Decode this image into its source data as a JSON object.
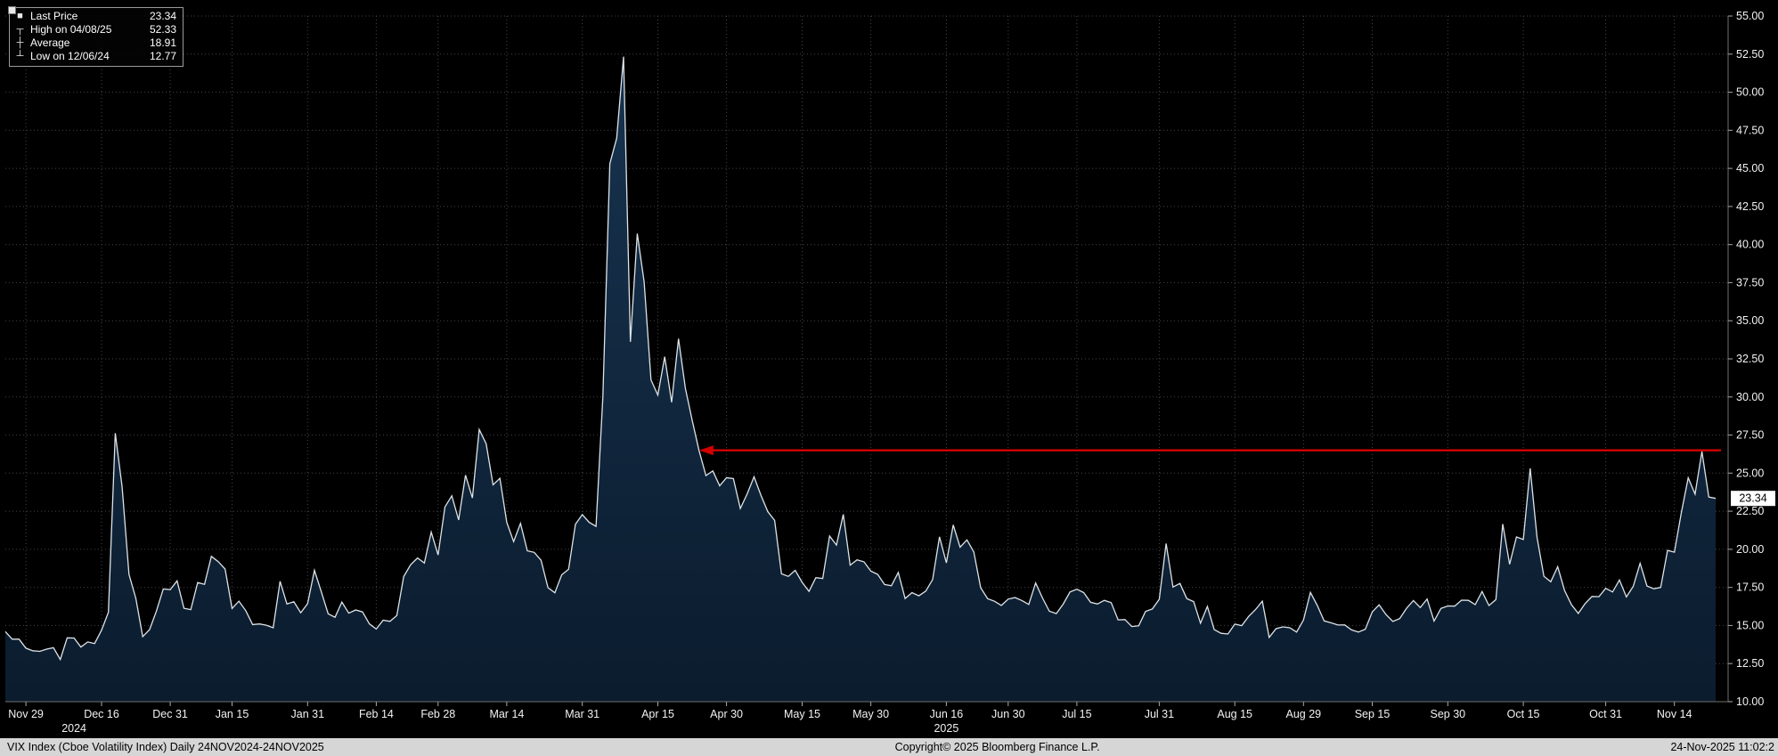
{
  "legend": {
    "items": [
      {
        "glyph": "■",
        "label": "Last Price",
        "value": "23.34"
      },
      {
        "glyph": "┬",
        "label": "High on 04/08/25",
        "value": "52.33"
      },
      {
        "glyph": "┼",
        "label": "Average",
        "value": "18.91"
      },
      {
        "glyph": "┴",
        "label": "Low on 12/06/24",
        "value": "12.77"
      }
    ]
  },
  "footer": {
    "left": "VIX Index (Cboe Volatility Index) Daily 24NOV2024-24NOV2025",
    "center": "Copyright© 2025 Bloomberg Finance L.P.",
    "right": "24-Nov-2025 11:02:2"
  },
  "chart_data": {
    "type": "area",
    "title": "VIX Index (Cboe Volatility Index) Daily 24NOV2024-24NOV2025",
    "x_range": [
      "2024-11-24",
      "2025-11-24"
    ],
    "ylim": [
      10,
      55
    ],
    "y_tick_step": 2.5,
    "y_ticks": [
      "55.00",
      "52.50",
      "50.00",
      "47.50",
      "45.00",
      "42.50",
      "40.00",
      "37.50",
      "35.00",
      "32.50",
      "30.00",
      "27.50",
      "25.00",
      "22.50",
      "20.00",
      "17.50",
      "15.00",
      "12.50",
      "10.00"
    ],
    "x_ticks": [
      {
        "date": "2024-11-29",
        "label": "Nov 29"
      },
      {
        "date": "2024-12-16",
        "label": "Dec 16"
      },
      {
        "date": "2024-12-31",
        "label": "Dec 31"
      },
      {
        "date": "2025-01-15",
        "label": "Jan 15"
      },
      {
        "date": "2025-01-31",
        "label": "Jan 31"
      },
      {
        "date": "2025-02-14",
        "label": "Feb 14"
      },
      {
        "date": "2025-02-28",
        "label": "Feb 28"
      },
      {
        "date": "2025-03-14",
        "label": "Mar 14"
      },
      {
        "date": "2025-03-31",
        "label": "Mar 31"
      },
      {
        "date": "2025-04-15",
        "label": "Apr 15"
      },
      {
        "date": "2025-04-30",
        "label": "Apr 30"
      },
      {
        "date": "2025-05-15",
        "label": "May 15"
      },
      {
        "date": "2025-05-30",
        "label": "May 30"
      },
      {
        "date": "2025-06-16",
        "label": "Jun 16"
      },
      {
        "date": "2025-06-30",
        "label": "Jun 30"
      },
      {
        "date": "2025-07-15",
        "label": "Jul 15"
      },
      {
        "date": "2025-07-31",
        "label": "Jul 31"
      },
      {
        "date": "2025-08-15",
        "label": "Aug 15"
      },
      {
        "date": "2025-08-29",
        "label": "Aug 29"
      },
      {
        "date": "2025-09-15",
        "label": "Sep 15"
      },
      {
        "date": "2025-09-30",
        "label": "Sep 30"
      },
      {
        "date": "2025-10-15",
        "label": "Oct 15"
      },
      {
        "date": "2025-10-31",
        "label": "Oct 31"
      },
      {
        "date": "2025-11-14",
        "label": "Nov 14"
      }
    ],
    "year_labels": [
      {
        "label": "2024",
        "date": "2024-12-10"
      },
      {
        "label": "2025",
        "date": "2025-06-16"
      }
    ],
    "grid": "dotted",
    "legend_position": "top-left",
    "stats": {
      "last": 23.34,
      "high_date": "04/08/25",
      "high": 52.33,
      "average": 18.91,
      "low_date": "12/06/24",
      "low": 12.77
    },
    "annotations": {
      "arrow": {
        "type": "horizontal-arrow",
        "y": 26.5,
        "from_date": "2025-04-24",
        "to": "right-edge",
        "color": "#d40000"
      },
      "last_price_marker": {
        "value": "23.34",
        "y": 23.34,
        "box_color": "#ffffff",
        "text_color": "#000000"
      }
    },
    "series": [
      {
        "name": "VIX Index Last Price",
        "line_color": "#dde3e8",
        "fill_top": "#17334f",
        "fill_bottom": "#0b1c2e",
        "dates": [
          "2024-11-25",
          "2024-11-26",
          "2024-11-27",
          "2024-11-29",
          "2024-12-02",
          "2024-12-03",
          "2024-12-04",
          "2024-12-05",
          "2024-12-06",
          "2024-12-09",
          "2024-12-10",
          "2024-12-11",
          "2024-12-12",
          "2024-12-13",
          "2024-12-16",
          "2024-12-17",
          "2024-12-18",
          "2024-12-19",
          "2024-12-20",
          "2024-12-23",
          "2024-12-24",
          "2024-12-26",
          "2024-12-27",
          "2024-12-30",
          "2024-12-31",
          "2025-01-02",
          "2025-01-03",
          "2025-01-06",
          "2025-01-07",
          "2025-01-08",
          "2025-01-10",
          "2025-01-13",
          "2025-01-14",
          "2025-01-15",
          "2025-01-16",
          "2025-01-17",
          "2025-01-21",
          "2025-01-22",
          "2025-01-23",
          "2025-01-24",
          "2025-01-27",
          "2025-01-28",
          "2025-01-29",
          "2025-01-30",
          "2025-01-31",
          "2025-02-03",
          "2025-02-04",
          "2025-02-05",
          "2025-02-06",
          "2025-02-07",
          "2025-02-10",
          "2025-02-11",
          "2025-02-12",
          "2025-02-13",
          "2025-02-14",
          "2025-02-18",
          "2025-02-19",
          "2025-02-20",
          "2025-02-21",
          "2025-02-24",
          "2025-02-25",
          "2025-02-26",
          "2025-02-27",
          "2025-02-28",
          "2025-03-03",
          "2025-03-04",
          "2025-03-05",
          "2025-03-06",
          "2025-03-07",
          "2025-03-10",
          "2025-03-11",
          "2025-03-12",
          "2025-03-13",
          "2025-03-14",
          "2025-03-17",
          "2025-03-18",
          "2025-03-19",
          "2025-03-20",
          "2025-03-21",
          "2025-03-24",
          "2025-03-25",
          "2025-03-26",
          "2025-03-27",
          "2025-03-28",
          "2025-03-31",
          "2025-04-01",
          "2025-04-02",
          "2025-04-03",
          "2025-04-04",
          "2025-04-07",
          "2025-04-08",
          "2025-04-09",
          "2025-04-10",
          "2025-04-11",
          "2025-04-14",
          "2025-04-15",
          "2025-04-16",
          "2025-04-17",
          "2025-04-21",
          "2025-04-22",
          "2025-04-23",
          "2025-04-24",
          "2025-04-25",
          "2025-04-28",
          "2025-04-29",
          "2025-04-30",
          "2025-05-01",
          "2025-05-02",
          "2025-05-05",
          "2025-05-06",
          "2025-05-07",
          "2025-05-08",
          "2025-05-09",
          "2025-05-12",
          "2025-05-13",
          "2025-05-14",
          "2025-05-15",
          "2025-05-16",
          "2025-05-19",
          "2025-05-20",
          "2025-05-21",
          "2025-05-22",
          "2025-05-23",
          "2025-05-27",
          "2025-05-28",
          "2025-05-29",
          "2025-05-30",
          "2025-06-02",
          "2025-06-03",
          "2025-06-04",
          "2025-06-05",
          "2025-06-06",
          "2025-06-09",
          "2025-06-10",
          "2025-06-11",
          "2025-06-12",
          "2025-06-13",
          "2025-06-16",
          "2025-06-17",
          "2025-06-18",
          "2025-06-20",
          "2025-06-23",
          "2025-06-24",
          "2025-06-25",
          "2025-06-26",
          "2025-06-27",
          "2025-06-30",
          "2025-07-01",
          "2025-07-02",
          "2025-07-03",
          "2025-07-07",
          "2025-07-08",
          "2025-07-09",
          "2025-07-10",
          "2025-07-11",
          "2025-07-14",
          "2025-07-15",
          "2025-07-16",
          "2025-07-17",
          "2025-07-18",
          "2025-07-21",
          "2025-07-22",
          "2025-07-23",
          "2025-07-24",
          "2025-07-25",
          "2025-07-28",
          "2025-07-29",
          "2025-07-30",
          "2025-07-31",
          "2025-08-01",
          "2025-08-04",
          "2025-08-05",
          "2025-08-06",
          "2025-08-07",
          "2025-08-08",
          "2025-08-11",
          "2025-08-12",
          "2025-08-13",
          "2025-08-14",
          "2025-08-15",
          "2025-08-18",
          "2025-08-19",
          "2025-08-20",
          "2025-08-21",
          "2025-08-22",
          "2025-08-25",
          "2025-08-26",
          "2025-08-27",
          "2025-08-28",
          "2025-08-29",
          "2025-09-02",
          "2025-09-03",
          "2025-09-04",
          "2025-09-05",
          "2025-09-08",
          "2025-09-09",
          "2025-09-10",
          "2025-09-11",
          "2025-09-12",
          "2025-09-15",
          "2025-09-16",
          "2025-09-17",
          "2025-09-18",
          "2025-09-19",
          "2025-09-22",
          "2025-09-23",
          "2025-09-24",
          "2025-09-25",
          "2025-09-26",
          "2025-09-29",
          "2025-09-30",
          "2025-10-01",
          "2025-10-02",
          "2025-10-03",
          "2025-10-06",
          "2025-10-07",
          "2025-10-08",
          "2025-10-09",
          "2025-10-10",
          "2025-10-13",
          "2025-10-14",
          "2025-10-15",
          "2025-10-16",
          "2025-10-17",
          "2025-10-20",
          "2025-10-21",
          "2025-10-22",
          "2025-10-23",
          "2025-10-24",
          "2025-10-27",
          "2025-10-28",
          "2025-10-29",
          "2025-10-30",
          "2025-10-31",
          "2025-11-03",
          "2025-11-04",
          "2025-11-05",
          "2025-11-06",
          "2025-11-07",
          "2025-11-10",
          "2025-11-11",
          "2025-11-12",
          "2025-11-13",
          "2025-11-14",
          "2025-11-17",
          "2025-11-18",
          "2025-11-19",
          "2025-11-20",
          "2025-11-21",
          "2025-11-24"
        ],
        "values": [
          14.6,
          14.1,
          14.1,
          13.51,
          13.34,
          13.3,
          13.45,
          13.54,
          12.77,
          14.19,
          14.18,
          13.58,
          13.92,
          13.81,
          14.69,
          15.87,
          27.62,
          24.09,
          18.36,
          16.78,
          14.27,
          14.73,
          15.95,
          17.4,
          17.35,
          17.93,
          16.13,
          16.04,
          17.82,
          17.7,
          19.54,
          19.19,
          18.71,
          16.12,
          16.6,
          15.97,
          15.06,
          15.1,
          15.02,
          14.85,
          17.9,
          16.41,
          16.56,
          15.84,
          16.43,
          18.62,
          17.21,
          15.77,
          15.54,
          16.54,
          15.81,
          16.02,
          15.89,
          15.1,
          14.77,
          15.35,
          15.27,
          15.66,
          18.21,
          18.98,
          19.43,
          19.1,
          21.13,
          19.63,
          22.78,
          23.51,
          21.93,
          24.87,
          23.37,
          27.86,
          26.92,
          24.23,
          24.66,
          21.77,
          20.51,
          21.7,
          19.9,
          19.8,
          19.28,
          17.48,
          17.15,
          18.33,
          18.69,
          21.65,
          22.28,
          21.77,
          21.51,
          30.02,
          45.31,
          46.98,
          52.33,
          33.62,
          40.72,
          37.56,
          31.12,
          30.12,
          32.64,
          29.65,
          33.82,
          30.57,
          28.45,
          26.47,
          24.84,
          25.15,
          24.17,
          24.7,
          24.64,
          22.68,
          23.64,
          24.76,
          23.55,
          22.48,
          21.9,
          18.39,
          18.22,
          18.62,
          17.83,
          17.24,
          18.14,
          18.09,
          20.87,
          20.28,
          22.29,
          18.96,
          19.31,
          19.18,
          18.57,
          18.36,
          17.69,
          17.61,
          18.48,
          16.77,
          17.16,
          16.95,
          17.26,
          18.02,
          20.82,
          19.11,
          21.6,
          20.14,
          20.62,
          19.83,
          17.48,
          16.76,
          16.59,
          16.32,
          16.73,
          16.83,
          16.64,
          16.38,
          17.79,
          16.81,
          15.94,
          15.78,
          16.4,
          17.2,
          17.38,
          17.16,
          16.52,
          16.41,
          16.65,
          16.5,
          15.37,
          15.39,
          14.93,
          14.98,
          15.92,
          16.09,
          16.72,
          20.38,
          17.52,
          17.76,
          16.77,
          16.57,
          15.15,
          16.25,
          14.73,
          14.49,
          14.44,
          15.09,
          14.99,
          15.59,
          16.04,
          16.6,
          14.22,
          14.79,
          14.91,
          14.85,
          14.57,
          15.36,
          17.17,
          16.32,
          15.3,
          15.18,
          15.03,
          15.04,
          14.71,
          14.57,
          14.76,
          15.89,
          16.35,
          15.72,
          15.27,
          15.45,
          16.13,
          16.64,
          16.18,
          16.74,
          15.29,
          16.12,
          16.28,
          16.27,
          16.66,
          16.65,
          16.37,
          17.23,
          16.31,
          16.7,
          21.66,
          19.02,
          20.81,
          20.64,
          25.31,
          20.78,
          18.23,
          17.87,
          18.86,
          17.3,
          16.37,
          15.79,
          16.44,
          16.91,
          16.89,
          17.44,
          17.2,
          17.99,
          16.87,
          17.57,
          19.08,
          17.59,
          17.41,
          17.5,
          19.93,
          19.81,
          22.38,
          24.69,
          23.62,
          26.42,
          23.43,
          23.34
        ]
      }
    ]
  }
}
